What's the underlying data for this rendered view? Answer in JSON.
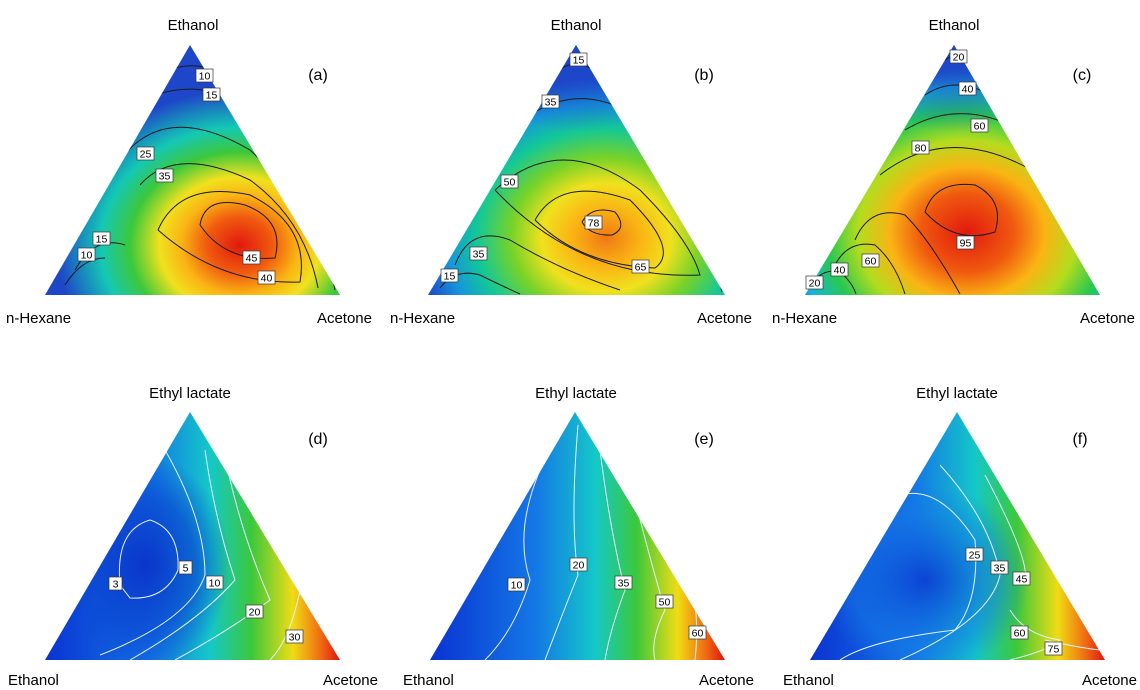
{
  "figure": {
    "panels": [
      {
        "id": "a",
        "panel_label": "(a)",
        "top_label": "Ethanol",
        "left_label": "n-Hexane",
        "right_label": "Acetone",
        "palette": "red"
      },
      {
        "id": "b",
        "panel_label": "(b)",
        "top_label": "Ethanol",
        "left_label": "n-Hexane",
        "right_label": "Acetone",
        "palette": "orange"
      },
      {
        "id": "c",
        "panel_label": "(c)",
        "top_label": "Ethanol",
        "left_label": "n-Hexane",
        "right_label": "Acetone",
        "palette": "redlarge"
      },
      {
        "id": "d",
        "panel_label": "(d)",
        "top_label": "Ethyl lactate",
        "left_label": "Ethanol",
        "right_label": "Acetone",
        "palette": "blue-red-corner"
      },
      {
        "id": "e",
        "panel_label": "(e)",
        "top_label": "Ethyl lactate",
        "left_label": "Ethanol",
        "right_label": "Acetone",
        "palette": "blue-red-corner"
      },
      {
        "id": "f",
        "panel_label": "(f)",
        "top_label": "Ethyl lactate",
        "left_label": "Ethanol",
        "right_label": "Acetone",
        "palette": "blue-red-corner"
      }
    ]
  },
  "chart_data": [
    {
      "type": "heatmap",
      "subtype": "ternary-contour",
      "panel": "(a)",
      "axes": [
        "Ethanol",
        "n-Hexane",
        "Acetone"
      ],
      "contour_levels": [
        10,
        15,
        25,
        35,
        40,
        45
      ],
      "contour_labels": [
        "10",
        "15",
        "25",
        "35",
        "45",
        "40",
        "15",
        "10"
      ],
      "max_region": "center toward Acetone",
      "colors": {
        "low": "#1e46c8",
        "mid": "#28c83c",
        "high": "#e1190f"
      }
    },
    {
      "type": "heatmap",
      "subtype": "ternary-contour",
      "panel": "(b)",
      "axes": [
        "Ethanol",
        "n-Hexane",
        "Acetone"
      ],
      "contour_levels": [
        15,
        35,
        50,
        65,
        78
      ],
      "contour_labels": [
        "15",
        "35",
        "50",
        "78",
        "65",
        "35",
        "15"
      ],
      "colors": {
        "low": "#1e46c8",
        "mid": "#28c83c",
        "high": "#f07814"
      }
    },
    {
      "type": "heatmap",
      "subtype": "ternary-contour",
      "panel": "(c)",
      "axes": [
        "Ethanol",
        "n-Hexane",
        "Acetone"
      ],
      "contour_levels": [
        20,
        40,
        60,
        80,
        95
      ],
      "contour_labels": [
        "20",
        "40",
        "60",
        "80",
        "95",
        "60",
        "40",
        "20"
      ],
      "colors": {
        "low": "#1e46c8",
        "mid": "#28c83c",
        "high": "#e1190f"
      }
    },
    {
      "type": "heatmap",
      "subtype": "ternary-contour",
      "panel": "(d)",
      "axes": [
        "Ethyl lactate",
        "Ethanol",
        "Acetone"
      ],
      "contour_levels": [
        3,
        5,
        10,
        20,
        30
      ],
      "contour_labels": [
        "3",
        "5",
        "10",
        "20",
        "30"
      ],
      "colors": {
        "low": "#0a32d2",
        "mid": "#28c83c",
        "high": "#dc140f"
      }
    },
    {
      "type": "heatmap",
      "subtype": "ternary-contour",
      "panel": "(e)",
      "axes": [
        "Ethyl lactate",
        "Ethanol",
        "Acetone"
      ],
      "contour_levels": [
        10,
        20,
        35,
        50,
        60
      ],
      "contour_labels": [
        "10",
        "20",
        "35",
        "50",
        "60"
      ],
      "colors": {
        "low": "#0a32d2",
        "mid": "#28c83c",
        "high": "#dc140f"
      }
    },
    {
      "type": "heatmap",
      "subtype": "ternary-contour",
      "panel": "(f)",
      "axes": [
        "Ethyl lactate",
        "Ethanol",
        "Acetone"
      ],
      "contour_levels": [
        25,
        35,
        45,
        60,
        75
      ],
      "contour_labels": [
        "25",
        "35",
        "45",
        "60",
        "75"
      ],
      "colors": {
        "low": "#0a32d2",
        "mid": "#28c83c",
        "high": "#dc140f"
      }
    }
  ]
}
